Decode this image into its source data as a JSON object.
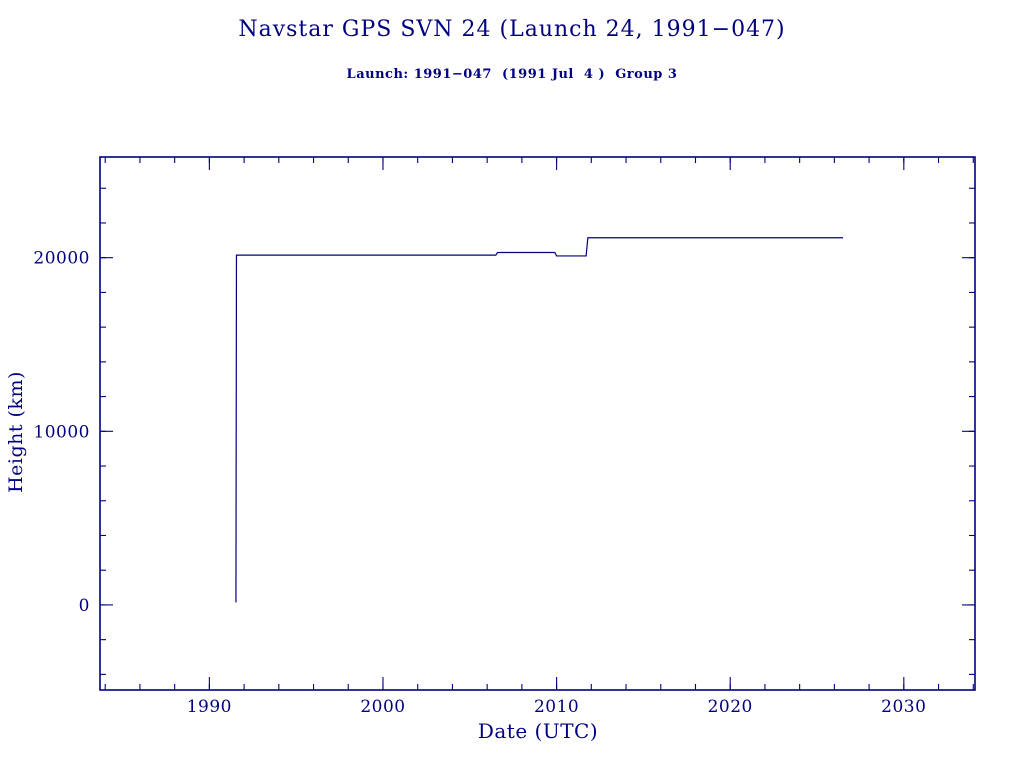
{
  "page": {
    "background": "#ffffff",
    "accent_color": "#000080"
  },
  "header": {
    "title": "Navstar GPS SVN 24 (Launch 24, 1991−047)",
    "subtitle": "Launch: 1991−047  (1991 Jul  4 )  Group 3"
  },
  "chart_data": {
    "type": "line",
    "title": "Navstar GPS SVN 24 (Launch 24, 1991−047)",
    "subtitle": "Launch: 1991−047  (1991 Jul  4 )  Group 3",
    "xlabel": "Date (UTC)",
    "ylabel": "Height (km)",
    "xlim": [
      1983.7,
      2034.1
    ],
    "ylim": [
      -4900,
      25800
    ],
    "x_ticks": {
      "values": [
        1990,
        2000,
        2010,
        2020,
        2030
      ],
      "labels": [
        "1990",
        "2000",
        "2010",
        "2020",
        "2030"
      ]
    },
    "y_ticks": {
      "values": [
        0,
        10000,
        20000
      ],
      "labels": [
        "0",
        "10000",
        "20000"
      ]
    },
    "x_minor_step": 2,
    "y_minor_step": 2000,
    "grid": false,
    "legend": "none",
    "line_color": "#000080",
    "series": [
      {
        "name": "orbit-height-km",
        "points": [
          [
            1991.53,
            150
          ],
          [
            1991.56,
            20150
          ],
          [
            2006.5,
            20150
          ],
          [
            2006.6,
            20300
          ],
          [
            2009.9,
            20300
          ],
          [
            2010.0,
            20100
          ],
          [
            2011.7,
            20100
          ],
          [
            2011.8,
            21150
          ],
          [
            2026.5,
            21150
          ]
        ]
      }
    ]
  }
}
